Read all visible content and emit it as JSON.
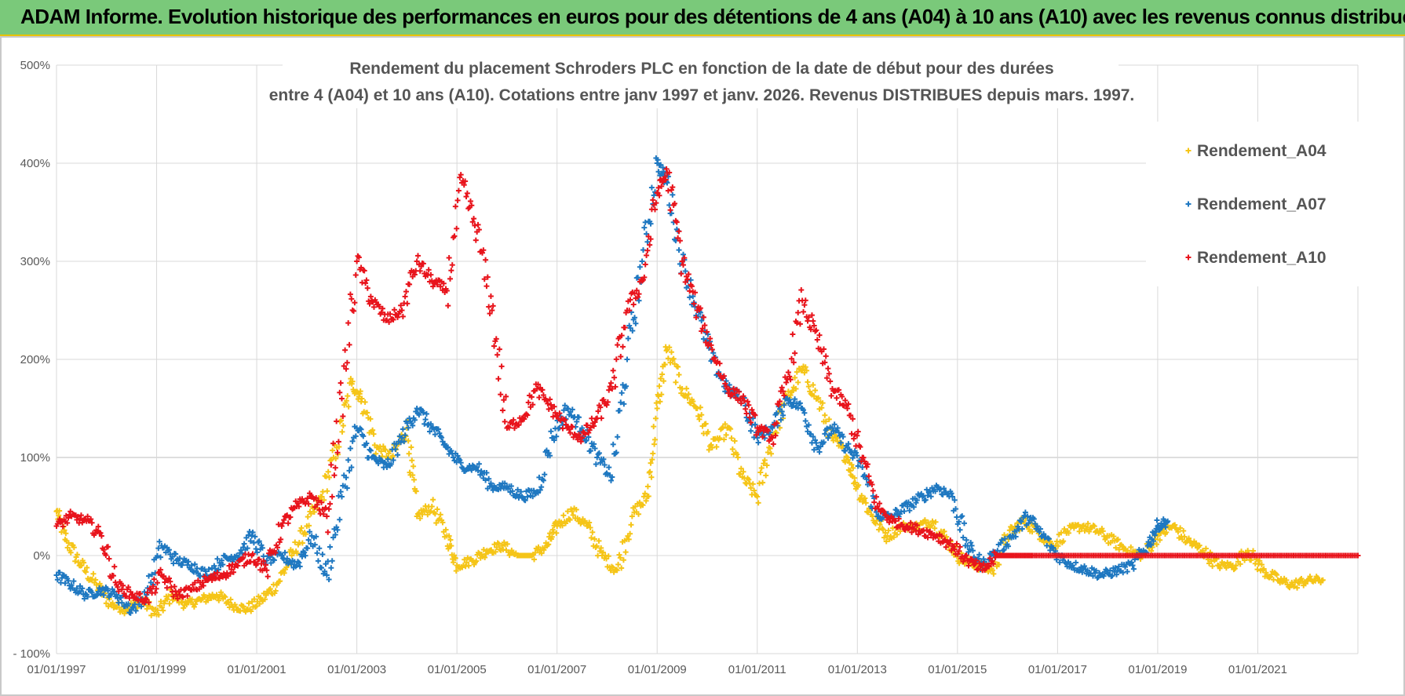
{
  "banner": {
    "title": "ADAM Informe. Evolution historique des performances en euros pour des détentions de 4 ans (A04) à 10 ans (A10) avec les revenus connus distribués"
  },
  "chart_data": {
    "type": "scatter",
    "title_line1": "Rendement du placement Schroders PLC en fonction de la date de début pour des durées",
    "title_line2": "entre 4 (A04) et 10 ans (A10).  Cotations entre janv 1997 et janv. 2026. Revenus DISTRIBUES depuis mars. 1997.",
    "xlabel": "",
    "ylabel": "",
    "xlim": [
      1997.0,
      2023.0
    ],
    "ylim": [
      -100,
      500
    ],
    "x_ticks": [
      1997,
      1999,
      2001,
      2003,
      2005,
      2007,
      2009,
      2011,
      2013,
      2015,
      2017,
      2019,
      2021
    ],
    "x_tick_labels": [
      "01/01/1997",
      "01/01/1999",
      "01/01/2001",
      "01/01/2003",
      "01/01/2005",
      "01/01/2007",
      "01/01/2009",
      "01/01/2011",
      "01/01/2013",
      "01/01/2015",
      "01/01/2017",
      "01/01/2019",
      "01/01/2021"
    ],
    "y_ticks": [
      -100,
      0,
      100,
      200,
      300,
      400,
      500
    ],
    "y_tick_labels": [
      "- 100%",
      "0%",
      "100%",
      "200%",
      "300%",
      "400%",
      "500%"
    ],
    "grid": true,
    "legend_position": "top-right",
    "series": [
      {
        "name": "Rendement_A04",
        "color": "#f5c518",
        "x": [
          1997.0,
          1997.2,
          1997.5,
          1997.8,
          1998.1,
          1998.4,
          1998.7,
          1999.0,
          1999.3,
          1999.6,
          1999.9,
          2000.2,
          2000.5,
          2000.8,
          2001.1,
          2001.4,
          2001.7,
          2002.0,
          2002.3,
          2002.6,
          2002.9,
          2003.1,
          2003.4,
          2003.7,
          2004.0,
          2004.2,
          2004.5,
          2004.8,
          2005.0,
          2005.3,
          2005.6,
          2005.9,
          2006.2,
          2006.5,
          2006.8,
          2007.0,
          2007.3,
          2007.6,
          2007.9,
          2008.2,
          2008.5,
          2008.8,
          2009.0,
          2009.2,
          2009.5,
          2009.8,
          2010.1,
          2010.4,
          2010.7,
          2011.0,
          2011.3,
          2011.6,
          2011.9,
          2012.2,
          2012.5,
          2012.8,
          2013.0,
          2013.3,
          2013.6,
          2013.9,
          2014.2,
          2014.5,
          2014.8,
          2015.1,
          2015.4,
          2015.7,
          2016.0,
          2016.3,
          2016.6,
          2016.9,
          2017.2,
          2017.5,
          2017.8,
          2018.1,
          2018.4,
          2018.7,
          2019.0,
          2019.3,
          2019.6,
          2019.9,
          2020.2,
          2020.5,
          2020.8,
          2021.1,
          2021.4,
          2021.7,
          2022.0,
          2022.3
        ],
        "y": [
          45,
          15,
          -10,
          -30,
          -50,
          -55,
          -45,
          -60,
          -40,
          -50,
          -45,
          -40,
          -50,
          -55,
          -45,
          -30,
          0,
          30,
          60,
          110,
          175,
          160,
          110,
          100,
          130,
          40,
          50,
          20,
          -10,
          -5,
          5,
          10,
          0,
          0,
          10,
          30,
          45,
          30,
          0,
          -15,
          40,
          60,
          150,
          210,
          170,
          150,
          110,
          130,
          80,
          60,
          120,
          160,
          190,
          160,
          120,
          100,
          70,
          40,
          20,
          30,
          30,
          35,
          15,
          -5,
          -10,
          -15,
          20,
          35,
          25,
          10,
          25,
          30,
          25,
          15,
          5,
          0,
          20,
          30,
          15,
          5,
          -10,
          -10,
          5,
          -15,
          -25,
          -30,
          -25,
          -25
        ]
      },
      {
        "name": "Rendement_A07",
        "color": "#1f78c1",
        "x": [
          1997.0,
          1997.3,
          1997.6,
          1997.9,
          1998.2,
          1998.5,
          1998.8,
          1999.1,
          1999.4,
          1999.7,
          2000.0,
          2000.3,
          2000.6,
          2000.9,
          2001.2,
          2001.5,
          2001.8,
          2002.1,
          2002.4,
          2002.7,
          2003.0,
          2003.3,
          2003.6,
          2003.9,
          2004.2,
          2004.5,
          2004.8,
          2005.1,
          2005.4,
          2005.7,
          2006.0,
          2006.3,
          2006.6,
          2006.9,
          2007.2,
          2007.5,
          2007.8,
          2008.1,
          2008.4,
          2008.7,
          2009.0,
          2009.2,
          2009.5,
          2009.8,
          2010.1,
          2010.4,
          2010.7,
          2011.0,
          2011.3,
          2011.6,
          2011.9,
          2012.2,
          2012.5,
          2012.8,
          2013.1,
          2013.4,
          2013.7,
          2014.0,
          2014.3,
          2014.6,
          2014.9,
          2015.2,
          2015.5,
          2015.8,
          2016.1,
          2016.4,
          2016.7,
          2017.0,
          2017.3,
          2017.6,
          2017.9,
          2018.2,
          2018.5,
          2018.8,
          2019.0,
          2019.2
        ],
        "y": [
          -20,
          -30,
          -40,
          -35,
          -40,
          -55,
          -40,
          10,
          -5,
          -10,
          -20,
          -5,
          0,
          20,
          -5,
          0,
          -10,
          20,
          -20,
          60,
          130,
          100,
          90,
          120,
          150,
          130,
          110,
          90,
          90,
          70,
          70,
          60,
          65,
          120,
          150,
          130,
          100,
          80,
          200,
          300,
          400,
          380,
          300,
          250,
          200,
          170,
          160,
          120,
          130,
          160,
          150,
          110,
          130,
          110,
          90,
          40,
          40,
          50,
          60,
          70,
          60,
          10,
          -10,
          5,
          20,
          40,
          20,
          0,
          -10,
          -15,
          -20,
          -15,
          -10,
          10,
          30,
          35
        ]
      },
      {
        "name": "Rendement_A10",
        "color": "#e8141c",
        "x": [
          1997.0,
          1997.3,
          1997.6,
          1997.9,
          1998.2,
          1998.5,
          1998.8,
          1999.1,
          1999.4,
          1999.7,
          2000.0,
          2000.3,
          2000.6,
          2000.9,
          2001.2,
          2001.5,
          2001.8,
          2002.1,
          2002.4,
          2002.7,
          2003.0,
          2003.3,
          2003.6,
          2003.9,
          2004.2,
          2004.5,
          2004.8,
          2005.1,
          2005.4,
          2005.7,
          2006.0,
          2006.3,
          2006.6,
          2006.9,
          2007.2,
          2007.5,
          2007.8,
          2008.1,
          2008.4,
          2008.7,
          2009.0,
          2009.2,
          2009.5,
          2009.8,
          2010.1,
          2010.4,
          2010.7,
          2011.0,
          2011.3,
          2011.6,
          2011.9,
          2012.2,
          2012.5,
          2012.8,
          2013.1,
          2013.4,
          2013.7,
          2014.0,
          2014.3,
          2014.6,
          2014.9,
          2015.2,
          2015.5,
          2015.8,
          2016.1,
          2016.5,
          2017.0,
          2017.5,
          2018.0,
          2018.5,
          2019.0,
          2019.5,
          2020.0,
          2020.5,
          2021.0,
          2021.5,
          2022.0,
          2022.5,
          2023.0
        ],
        "y": [
          30,
          40,
          35,
          20,
          -30,
          -40,
          -45,
          -20,
          -40,
          -35,
          -25,
          -20,
          -10,
          0,
          -15,
          30,
          50,
          60,
          40,
          160,
          300,
          260,
          240,
          250,
          300,
          280,
          270,
          380,
          330,
          250,
          130,
          140,
          170,
          150,
          130,
          120,
          140,
          170,
          250,
          280,
          370,
          390,
          300,
          250,
          210,
          170,
          160,
          130,
          120,
          180,
          260,
          220,
          170,
          150,
          100,
          50,
          35,
          30,
          25,
          20,
          10,
          -5,
          -15,
          0,
          0,
          0,
          0,
          0,
          0,
          0,
          0,
          0,
          0,
          0,
          0,
          0,
          0,
          0,
          0
        ]
      }
    ]
  }
}
